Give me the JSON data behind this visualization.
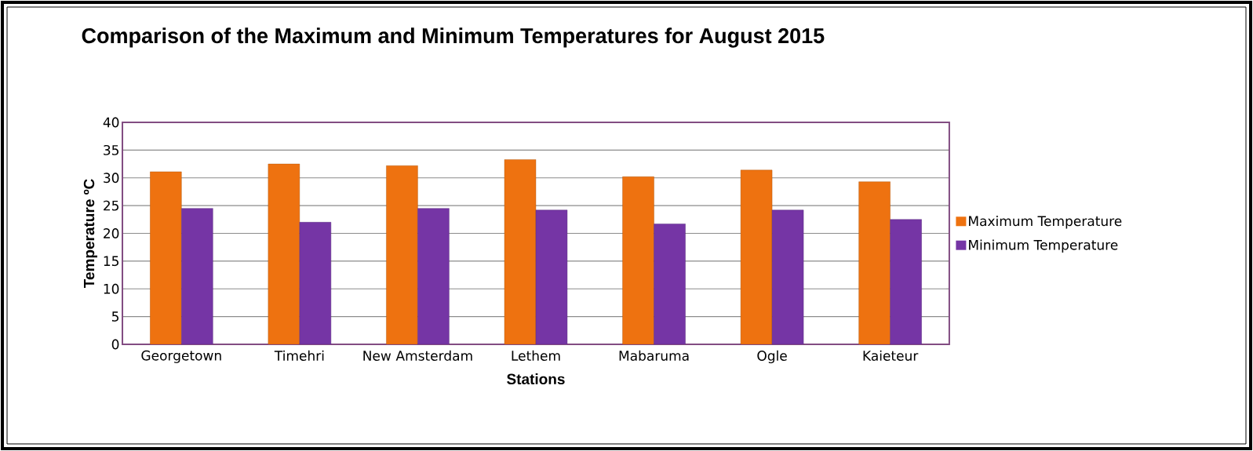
{
  "chart_data": {
    "type": "bar",
    "title": "Comparison of the  Maximum and Minimum Temperatures for August  2015",
    "xlabel": "Stations",
    "ylabel": "Temperature  ºC",
    "categories": [
      "Georgetown",
      "Timehri",
      "New Amsterdam",
      "Lethem",
      "Mabaruma",
      "Ogle",
      "Kaieteur"
    ],
    "series": [
      {
        "name": "Maximum Temperature",
        "color": "#ee7210",
        "values": [
          31.1,
          32.5,
          32.2,
          33.3,
          30.2,
          31.4,
          29.3
        ]
      },
      {
        "name": "Minimum Temperature",
        "color": "#7535a5",
        "values": [
          24.5,
          22.0,
          24.5,
          24.2,
          21.7,
          24.2,
          22.5
        ]
      }
    ],
    "ylim": [
      0,
      40
    ],
    "yticks": [
      0,
      5,
      10,
      15,
      20,
      25,
      30,
      35,
      40
    ],
    "grid": "y",
    "legend": "right"
  }
}
